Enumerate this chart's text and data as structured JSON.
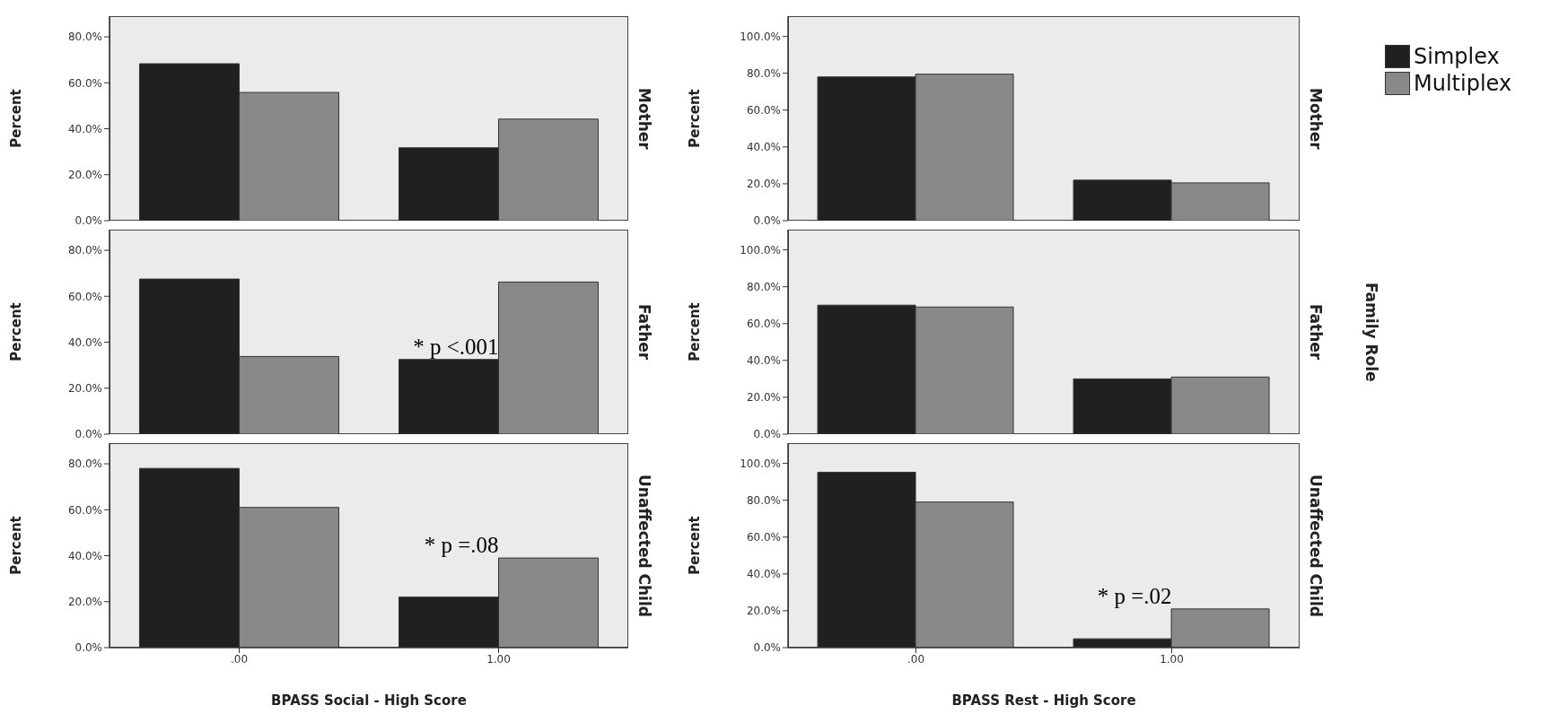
{
  "chart_data": [
    {
      "type": "bar",
      "categories": [
        ".00",
        "1.00"
      ],
      "ylabel": "Percent",
      "y2label": "Mother",
      "ylim": [
        0,
        89
      ],
      "yticks": [
        {
          "value": 0,
          "label": "0.0%"
        },
        {
          "value": 20,
          "label": "20.0%"
        },
        {
          "value": 40,
          "label": "40.0%"
        },
        {
          "value": 60,
          "label": "60.0%"
        },
        {
          "value": 80,
          "label": "80.0%"
        }
      ],
      "tick_labels": "y",
      "legend": false,
      "series": [
        {
          "color": "#202020",
          "values": [
            68.3,
            31.7
          ]
        },
        {
          "color": "#898989",
          "values": [
            55.8,
            44.2
          ]
        }
      ]
    },
    {
      "type": "bar",
      "categories": [
        ".00",
        "1.00"
      ],
      "ylabel": "Percent",
      "y2label": "Mother",
      "ylim": [
        0,
        111
      ],
      "yticks": [
        {
          "value": 0,
          "label": "0.0%"
        },
        {
          "value": 20,
          "label": "20.0%"
        },
        {
          "value": 40,
          "label": "40.0%"
        },
        {
          "value": 60,
          "label": "60.0%"
        },
        {
          "value": 80,
          "label": "80.0%"
        },
        {
          "value": 100,
          "label": "100.0%"
        }
      ],
      "tick_labels": "y",
      "legend": "right",
      "series": [
        {
          "name": "Simplex",
          "color": "#202020",
          "values": [
            78,
            22
          ]
        },
        {
          "name": "Multiplex",
          "color": "#898989",
          "values": [
            79.5,
            20.5
          ]
        }
      ]
    },
    {
      "type": "bar",
      "categories": [
        ".00",
        "1.00"
      ],
      "ylabel": "Percent",
      "y2label": "Father",
      "ylim": [
        0,
        89
      ],
      "yticks": [
        {
          "value": 0,
          "label": "0.0%"
        },
        {
          "value": 20,
          "label": "20.0%"
        },
        {
          "value": 40,
          "label": "40.0%"
        },
        {
          "value": 60,
          "label": "60.0%"
        },
        {
          "value": 80,
          "label": "80.0%"
        }
      ],
      "tick_labels": "y",
      "legend": false,
      "series": [
        {
          "color": "#202020",
          "values": [
            67.5,
            32.5
          ]
        },
        {
          "color": "#898989",
          "values": [
            33.8,
            66.2
          ]
        }
      ],
      "annotations": [
        {
          "text": "* p <.001",
          "x": "1.00",
          "y": 32.5
        }
      ]
    },
    {
      "type": "bar",
      "categories": [
        ".00",
        "1.00"
      ],
      "ylabel": "Percent",
      "y2label": "Father",
      "ylim": [
        0,
        111
      ],
      "yticks": [
        {
          "value": 0,
          "label": "0.0%"
        },
        {
          "value": 20,
          "label": "20.0%"
        },
        {
          "value": 40,
          "label": "40.0%"
        },
        {
          "value": 60,
          "label": "60.0%"
        },
        {
          "value": 80,
          "label": "80.0%"
        },
        {
          "value": 100,
          "label": "100.0%"
        }
      ],
      "tick_labels": "y",
      "legend": false,
      "series": [
        {
          "color": "#202020",
          "values": [
            70,
            30
          ]
        },
        {
          "color": "#898989",
          "values": [
            69,
            31
          ]
        }
      ],
      "annotations": [
        "Family Role"
      ]
    },
    {
      "type": "bar",
      "categories": [
        ".00",
        "1.00"
      ],
      "xlabel": "BPASS Social - High Score",
      "ylabel": "Percent",
      "y2label": "Unaffected Child",
      "ylim": [
        0,
        89
      ],
      "yticks": [
        {
          "value": 0,
          "label": "0.0%"
        },
        {
          "value": 20,
          "label": "20.0%"
        },
        {
          "value": 40,
          "label": "40.0%"
        },
        {
          "value": 60,
          "label": "60.0%"
        },
        {
          "value": 80,
          "label": "80.0%"
        }
      ],
      "legend": false,
      "series": [
        {
          "color": "#202020",
          "values": [
            78,
            22
          ]
        },
        {
          "color": "#898989",
          "values": [
            61,
            39
          ]
        }
      ],
      "annotations": [
        {
          "text": "* p =.08",
          "x": "1.00",
          "y": 39
        }
      ]
    },
    {
      "type": "bar",
      "categories": [
        ".00",
        "1.00"
      ],
      "xlabel": "BPASS Rest - High Score",
      "ylabel": "Percent",
      "y2label": "Unaffected Child",
      "ylim": [
        0,
        111
      ],
      "yticks": [
        {
          "value": 0,
          "label": "0.0%"
        },
        {
          "value": 20,
          "label": "20.0%"
        },
        {
          "value": 40,
          "label": "40.0%"
        },
        {
          "value": 60,
          "label": "60.0%"
        },
        {
          "value": 80,
          "label": "80.0%"
        },
        {
          "value": 100,
          "label": "100.0%"
        }
      ],
      "legend": false,
      "series": [
        {
          "color": "#202020",
          "values": [
            95.2,
            4.8
          ]
        },
        {
          "color": "#898989",
          "values": [
            79,
            21
          ]
        }
      ],
      "annotations": [
        {
          "text": "* p =.02",
          "x": "1.00",
          "y": 21
        }
      ]
    }
  ]
}
